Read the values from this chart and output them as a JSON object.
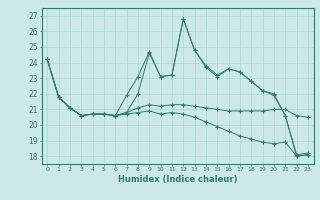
{
  "xlabel": "Humidex (Indice chaleur)",
  "bg_color": "#cce8e8",
  "line_color": "#2e7d6e",
  "grid_color": "#aed4d4",
  "xlim": [
    -0.5,
    23.5
  ],
  "ylim": [
    17.5,
    27.5
  ],
  "yticks": [
    18,
    19,
    20,
    21,
    22,
    23,
    24,
    25,
    26,
    27
  ],
  "xticks": [
    0,
    1,
    2,
    3,
    4,
    5,
    6,
    7,
    8,
    9,
    10,
    11,
    12,
    13,
    14,
    15,
    16,
    17,
    18,
    19,
    20,
    21,
    22,
    23
  ],
  "series": [
    [
      24.2,
      21.8,
      21.1,
      20.6,
      20.7,
      20.7,
      20.6,
      21.9,
      23.1,
      24.7,
      23.1,
      23.2,
      26.8,
      24.8,
      23.7,
      23.1,
      23.6,
      23.4,
      22.8,
      22.2,
      21.9,
      20.6,
      18.1,
      18.2
    ],
    [
      24.2,
      21.8,
      21.1,
      20.6,
      20.7,
      20.7,
      20.6,
      20.8,
      21.1,
      21.3,
      21.2,
      21.3,
      21.3,
      21.2,
      21.1,
      21.0,
      20.9,
      20.9,
      20.9,
      20.9,
      21.0,
      21.0,
      20.6,
      20.5
    ],
    [
      24.2,
      21.8,
      21.1,
      20.6,
      20.7,
      20.7,
      20.6,
      20.7,
      20.8,
      20.9,
      20.7,
      20.8,
      20.7,
      20.5,
      20.2,
      19.9,
      19.6,
      19.3,
      19.1,
      18.9,
      18.8,
      18.9,
      18.0,
      18.1
    ],
    [
      24.2,
      21.8,
      21.1,
      20.6,
      20.7,
      20.7,
      20.6,
      20.8,
      22.0,
      24.6,
      23.1,
      23.2,
      26.8,
      24.8,
      23.8,
      23.2,
      23.6,
      23.4,
      22.8,
      22.2,
      22.0,
      20.6,
      18.0,
      18.1
    ]
  ]
}
